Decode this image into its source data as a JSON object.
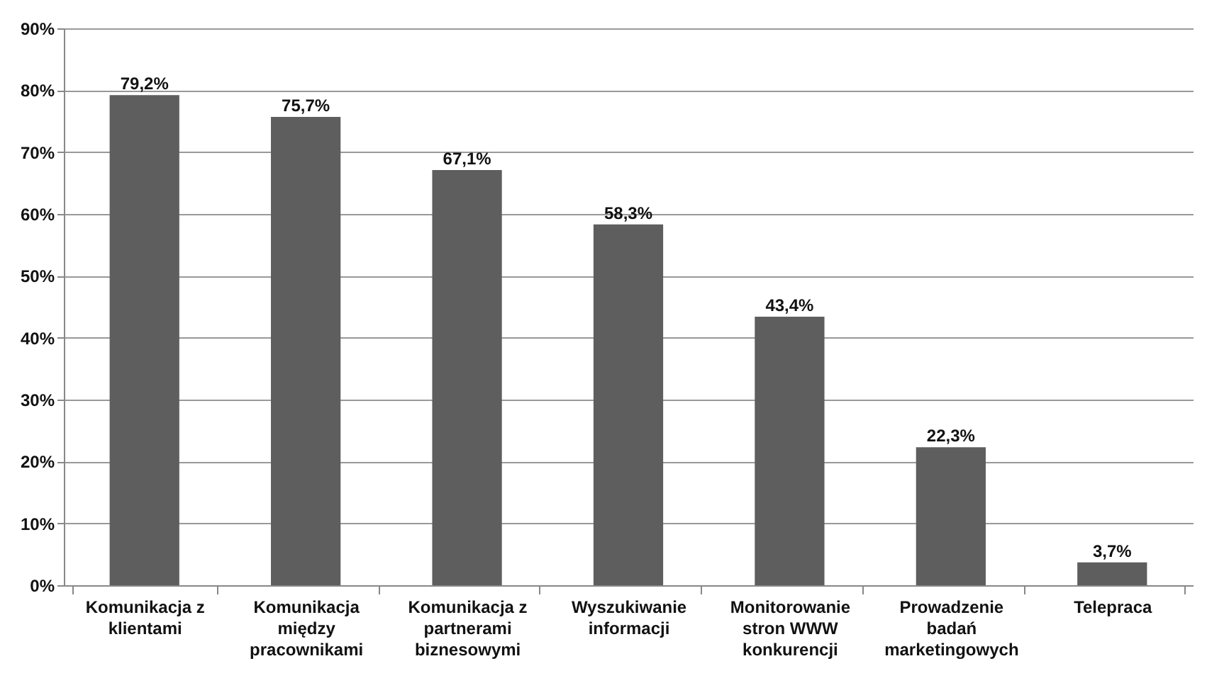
{
  "chart_data": {
    "type": "bar",
    "categories": [
      "Komunikacja z klientami",
      "Komunikacja między pracownikami",
      "Komunikacja z partnerami biznesowymi",
      "Wyszukiwanie informacji",
      "Monitorowanie stron WWW konkurencji",
      "Prowadzenie badań marketingowych",
      "Telepraca"
    ],
    "values": [
      79.2,
      75.7,
      67.1,
      58.3,
      43.4,
      22.3,
      3.7
    ],
    "value_labels": [
      "79,2%",
      "75,7%",
      "67,1%",
      "58,3%",
      "43,4%",
      "22,3%",
      "3,7%"
    ],
    "color": "#5e5e5e",
    "ylim": [
      0,
      90
    ],
    "yticks": [
      {
        "value": 0,
        "label": "0%"
      },
      {
        "value": 10,
        "label": "10%"
      },
      {
        "value": 20,
        "label": "20%"
      },
      {
        "value": 30,
        "label": "30%"
      },
      {
        "value": 40,
        "label": "40%"
      },
      {
        "value": 50,
        "label": "50%"
      },
      {
        "value": 60,
        "label": "60%"
      },
      {
        "value": 70,
        "label": "70%"
      },
      {
        "value": 80,
        "label": "80%"
      },
      {
        "value": 90,
        "label": "90%"
      }
    ],
    "grid": true
  }
}
